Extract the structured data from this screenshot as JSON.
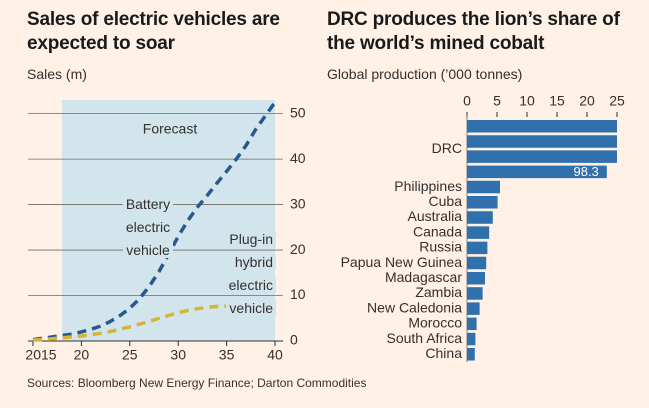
{
  "chart_data": [
    {
      "type": "line",
      "title": "Sales of electric vehicles are expected to soar",
      "y_label": "Sales (m)",
      "annotation": "Forecast",
      "forecast_start": 2018,
      "x": [
        2015,
        2016,
        2017,
        2018,
        2019,
        2020,
        2021,
        2022,
        2023,
        2024,
        2025,
        2026,
        2027,
        2028,
        2029,
        2030,
        2031,
        2032,
        2033,
        2034,
        2035,
        2036,
        2037,
        2038,
        2039,
        2040
      ],
      "xlim": [
        2015,
        2040
      ],
      "xticks": [
        2015,
        {
          "value": 2020,
          "label": "20"
        },
        {
          "value": 2025,
          "label": "25"
        },
        {
          "value": 2030,
          "label": "30"
        },
        {
          "value": 2035,
          "label": "35"
        },
        {
          "value": 2040,
          "label": "40"
        }
      ],
      "ylim": [
        0,
        53
      ],
      "yticks": [
        0,
        10,
        20,
        30,
        40,
        50
      ],
      "grid": true,
      "series": [
        {
          "name": "Battery electric vehicle",
          "color": "#27598f",
          "values": [
            0.3,
            0.6,
            0.9,
            1.2,
            1.5,
            2,
            2.6,
            3.3,
            4.3,
            5.6,
            7.2,
            9.3,
            12,
            15.2,
            19,
            23,
            26.5,
            29.5,
            32,
            34.7,
            37.3,
            40,
            43,
            46.5,
            49.5,
            52.5
          ]
        },
        {
          "name": "Plug-in hybrid electric vehicle",
          "color": "#d6b535",
          "values": [
            0.2,
            0.3,
            0.5,
            0.7,
            0.9,
            1.1,
            1.4,
            1.7,
            2.1,
            2.6,
            3.1,
            3.7,
            4.3,
            5,
            5.6,
            6.2,
            6.7,
            7.1,
            7.4,
            7.6,
            7.7,
            7.7,
            7.6,
            7.5,
            7.4,
            7.3
          ]
        }
      ]
    },
    {
      "type": "bar",
      "title": "DRC produces the lion’s share of the world’s mined cobalt",
      "x_label": "Global production (’000 tonnes)",
      "categories": [
        "DRC",
        "Philippines",
        "Cuba",
        "Australia",
        "Canada",
        "Russia",
        "Papua New Guinea",
        "Madagascar",
        "Zambia",
        "New Caledonia",
        "Morocco",
        "South Africa",
        "China"
      ],
      "values": [
        98.3,
        5.5,
        5.1,
        4.3,
        3.7,
        3.4,
        3.2,
        3.0,
        2.6,
        2.1,
        1.6,
        1.4,
        1.3
      ],
      "value_labels": [
        "98.3",
        null,
        null,
        null,
        null,
        null,
        null,
        null,
        null,
        null,
        null,
        null,
        null
      ],
      "xlim": [
        0,
        25
      ],
      "xticks": [
        0,
        5,
        10,
        15,
        20,
        25
      ],
      "color": "#2f70ad"
    }
  ],
  "source": "Sources: Bloomberg New Energy Finance; Darton Commodities"
}
